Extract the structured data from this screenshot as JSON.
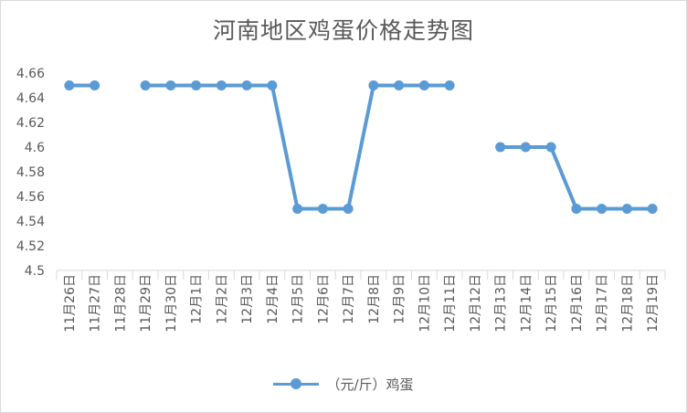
{
  "chart_data": {
    "type": "line",
    "title": "河南地区鸡蛋价格走势图",
    "xlabel": "",
    "ylabel": "",
    "ylim": [
      4.5,
      4.66
    ],
    "yticks": [
      "4.66",
      "4.64",
      "4.62",
      "4.6",
      "4.58",
      "4.56",
      "4.54",
      "4.52",
      "4.5"
    ],
    "grid": false,
    "legend_position": "bottom",
    "categories": [
      "11月26日",
      "11月27日",
      "11月28日",
      "11月29日",
      "11月30日",
      "12月1日",
      "12月2日",
      "12月3日",
      "12月4日",
      "12月5日",
      "12月6日",
      "12月7日",
      "12月8日",
      "12月9日",
      "12月10日",
      "12月11日",
      "12月12日",
      "12月13日",
      "12月14日",
      "12月15日",
      "12月16日",
      "12月17日",
      "12月18日",
      "12月19日"
    ],
    "series": [
      {
        "name": "（元/斤）鸡蛋",
        "color": "#5b9bd5",
        "values": [
          4.65,
          4.65,
          null,
          4.65,
          4.65,
          4.65,
          4.65,
          4.65,
          4.65,
          4.55,
          4.55,
          4.55,
          4.65,
          4.65,
          4.65,
          4.65,
          null,
          4.6,
          4.6,
          4.6,
          4.55,
          4.55,
          4.55,
          4.55
        ]
      }
    ]
  }
}
